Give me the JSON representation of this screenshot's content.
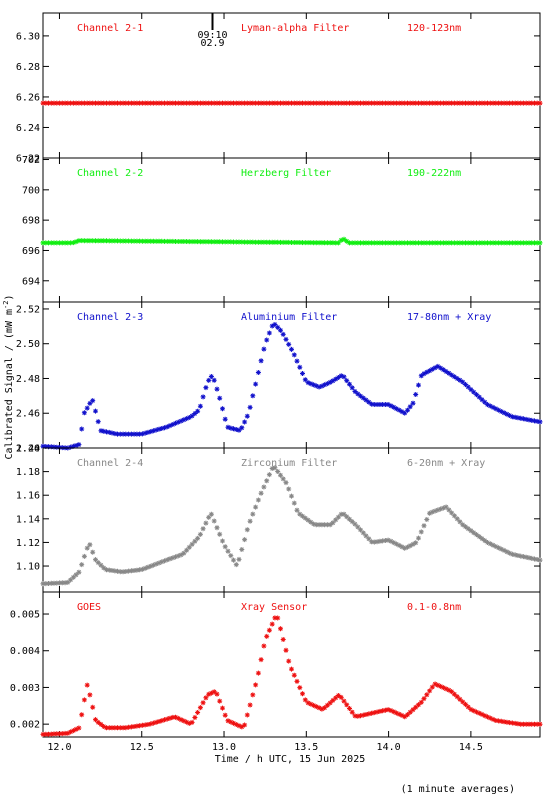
{
  "colors": {
    "panel1": "#ee1111",
    "panel2": "#11ee11",
    "panel3": "#1111cc",
    "panel4": "#888888",
    "panel5": "#ee1111",
    "axis": "#000000"
  },
  "xlabel": "Time / h UTC, 15 Jun 2025",
  "ylabel": "Calibrated Signal / (mW m",
  "ylabel_exp": "-2",
  "ylabel_close": ")",
  "footnote": "(1 minute averages)",
  "xlim": [
    11.9,
    14.92
  ],
  "xticks": [
    "12.0",
    "12.5",
    "13.0",
    "13.5",
    "14.0",
    "14.5"
  ],
  "chart_data": [
    {
      "type": "scatter",
      "label_left": "Channel 2-1",
      "label_mid": "Lyman-alpha Filter",
      "label_right": "120-123nm",
      "marker_text_1": "09:10",
      "marker_text_2": "02.9",
      "marker_x": 12.93,
      "ylim": [
        6.22,
        6.315
      ],
      "yticks": [
        "6.22",
        "6.24",
        "6.26",
        "6.28",
        "6.30"
      ],
      "x": [
        11.9,
        14.92
      ],
      "y": [
        6.256,
        6.256
      ]
    },
    {
      "type": "scatter",
      "label_left": "Channel 2-2",
      "label_mid": "Herzberg Filter",
      "label_right": "190-222nm",
      "ylim": [
        692.6,
        702.1
      ],
      "yticks": [
        "694",
        "696",
        "698",
        "700",
        "702"
      ],
      "x": [
        11.9,
        12.08,
        12.12,
        13.7,
        13.72,
        13.76,
        14.92
      ],
      "y": [
        696.5,
        696.5,
        696.65,
        696.5,
        696.8,
        696.5,
        696.5
      ]
    },
    {
      "type": "scatter",
      "label_left": "Channel 2-3",
      "label_mid": "Aluminium Filter",
      "label_right": "17-80nm + Xray",
      "ylim": [
        2.44,
        2.524
      ],
      "yticks": [
        "2.44",
        "2.46",
        "2.48",
        "2.50",
        "2.52"
      ],
      "x": [
        11.9,
        12.05,
        12.12,
        12.15,
        12.2,
        12.25,
        12.35,
        12.5,
        12.65,
        12.8,
        12.85,
        12.9,
        12.93,
        12.97,
        13.02,
        13.1,
        13.15,
        13.2,
        13.25,
        13.3,
        13.35,
        13.42,
        13.5,
        13.58,
        13.65,
        13.72,
        13.8,
        13.9,
        14.0,
        14.1,
        14.15,
        14.2,
        14.3,
        14.45,
        14.6,
        14.75,
        14.92
      ],
      "y": [
        2.441,
        2.44,
        2.442,
        2.46,
        2.468,
        2.45,
        2.448,
        2.448,
        2.452,
        2.458,
        2.462,
        2.478,
        2.482,
        2.47,
        2.452,
        2.45,
        2.46,
        2.48,
        2.5,
        2.512,
        2.507,
        2.495,
        2.478,
        2.475,
        2.478,
        2.482,
        2.472,
        2.465,
        2.465,
        2.46,
        2.466,
        2.482,
        2.487,
        2.478,
        2.465,
        2.458,
        2.455
      ]
    },
    {
      "type": "scatter",
      "label_left": "Channel 2-4",
      "label_mid": "Zirconium Filter",
      "label_right": "6-20nm + Xray",
      "ylim": [
        1.078,
        1.2
      ],
      "yticks": [
        "1.10",
        "1.12",
        "1.14",
        "1.16",
        "1.18",
        "1.20"
      ],
      "x": [
        11.9,
        12.05,
        12.12,
        12.18,
        12.22,
        12.28,
        12.38,
        12.5,
        12.65,
        12.75,
        12.85,
        12.92,
        13.0,
        13.08,
        13.15,
        13.22,
        13.3,
        13.38,
        13.45,
        13.55,
        13.65,
        13.72,
        13.8,
        13.9,
        14.0,
        14.1,
        14.17,
        14.25,
        14.35,
        14.45,
        14.6,
        14.75,
        14.92
      ],
      "y": [
        1.085,
        1.086,
        1.095,
        1.12,
        1.105,
        1.097,
        1.095,
        1.097,
        1.105,
        1.11,
        1.125,
        1.145,
        1.118,
        1.1,
        1.135,
        1.16,
        1.185,
        1.17,
        1.145,
        1.135,
        1.135,
        1.145,
        1.135,
        1.12,
        1.122,
        1.115,
        1.12,
        1.145,
        1.15,
        1.135,
        1.12,
        1.11,
        1.105
      ]
    },
    {
      "type": "scatter",
      "label_left": "GOES",
      "label_mid": "Xray Sensor",
      "label_right": "0.1-0.8nm",
      "ylim": [
        0.00165,
        0.0056
      ],
      "yticks": [
        "0.002",
        "0.003",
        "0.004",
        "0.005"
      ],
      "x": [
        11.9,
        12.05,
        12.12,
        12.17,
        12.22,
        12.28,
        12.4,
        12.55,
        12.7,
        12.8,
        12.9,
        12.95,
        13.02,
        13.12,
        13.2,
        13.25,
        13.32,
        13.4,
        13.5,
        13.6,
        13.7,
        13.8,
        13.9,
        14.0,
        14.1,
        14.2,
        14.28,
        14.38,
        14.5,
        14.65,
        14.8,
        14.92
      ],
      "y": [
        0.00172,
        0.00175,
        0.0019,
        0.0031,
        0.0021,
        0.0019,
        0.0019,
        0.002,
        0.0022,
        0.002,
        0.0028,
        0.0029,
        0.0021,
        0.0019,
        0.0032,
        0.0043,
        0.005,
        0.0036,
        0.0026,
        0.0024,
        0.0028,
        0.0022,
        0.0023,
        0.0024,
        0.0022,
        0.0026,
        0.0031,
        0.0029,
        0.0024,
        0.0021,
        0.002,
        0.002
      ]
    }
  ]
}
